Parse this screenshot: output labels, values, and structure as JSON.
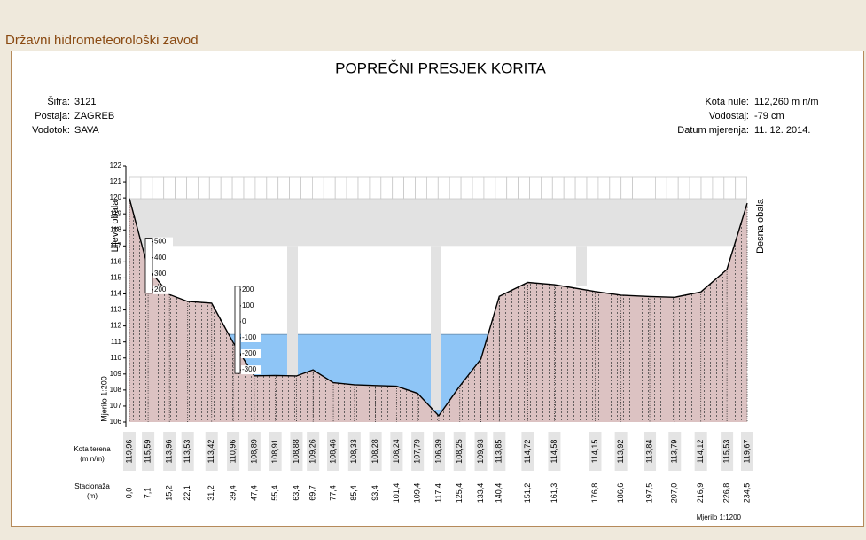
{
  "header": {
    "title": "Državni hidrometeorološki zavod"
  },
  "chart_data": {
    "type": "cross-section",
    "title": "POPREČNI PRESJEK KORITA",
    "info_left": [
      {
        "label": "Šifra:",
        "value": "3121"
      },
      {
        "label": "Postaja:",
        "value": "ZAGREB"
      },
      {
        "label": "Vodotok:",
        "value": "SAVA"
      }
    ],
    "info_right": [
      {
        "label": "Kota nule:",
        "value": 112.26,
        "value_label": "112,260 m n/m"
      },
      {
        "label": "Vodostaj:",
        "value": -79,
        "value_label": "-79 cm"
      },
      {
        "label": "Datum mjerenja:",
        "value": "11. 12. 2014."
      }
    ],
    "x": [
      0.0,
      7.1,
      15.2,
      22.1,
      31.2,
      39.4,
      47.4,
      55.4,
      63.4,
      69.7,
      77.4,
      85.4,
      93.4,
      101.4,
      109.4,
      117.4,
      125.4,
      133.4,
      140.4,
      151.2,
      161.3,
      176.8,
      186.6,
      197.5,
      207.0,
      216.9,
      226.8,
      234.5
    ],
    "x_labels": [
      "0,0",
      "7,1",
      "15,2",
      "22,1",
      "31,2",
      "39,4",
      "47,4",
      "55,4",
      "63,4",
      "69,7",
      "77,4",
      "85,4",
      "93,4",
      "101,4",
      "109,4",
      "117,4",
      "125,4",
      "133,4",
      "140,4",
      "151,2",
      "161,3",
      "176,8",
      "186,6",
      "197,5",
      "207,0",
      "216,9",
      "226,8",
      "234,5"
    ],
    "values": [
      119.96,
      115.59,
      113.96,
      113.53,
      113.42,
      110.96,
      108.89,
      108.91,
      108.88,
      109.26,
      108.46,
      108.33,
      108.28,
      108.24,
      107.79,
      106.39,
      108.25,
      109.93,
      113.85,
      114.72,
      114.58,
      114.15,
      113.92,
      113.84,
      113.79,
      114.12,
      115.53,
      119.67
    ],
    "value_labels": [
      "119,96",
      "115,59",
      "113,96",
      "113,53",
      "113,42",
      "110,96",
      "108,89",
      "108,91",
      "108,88",
      "109,26",
      "108,46",
      "108,33",
      "108,28",
      "108,24",
      "107,79",
      "106,39",
      "108,25",
      "109,93",
      "113,85",
      "114,72",
      "114,58",
      "114,15",
      "113,92",
      "113,84",
      "113,79",
      "114,12",
      "115,53",
      "119,67"
    ],
    "xlim": [
      0,
      234.5
    ],
    "ylim": [
      106,
      122
    ],
    "yticks": [
      106,
      107,
      108,
      109,
      110,
      111,
      112,
      113,
      114,
      115,
      116,
      117,
      118,
      119,
      120,
      121,
      122
    ],
    "left_bank_label": "Lijeva obala",
    "right_bank_label": "Desna obala",
    "scale_label_vertical": "Mjerilo 1:200",
    "scale_label_horizontal": "Mjerilo 1:1200",
    "row_labels": {
      "elevation": [
        "Kota terena",
        "(m n/m)"
      ],
      "station": [
        "Stacionaža",
        "(m)"
      ]
    },
    "gauges": [
      [
        500,
        400,
        300,
        200
      ],
      [
        200,
        100,
        0,
        -100,
        -200,
        -300
      ]
    ],
    "colors": {
      "terrain": "#dcc2c2",
      "water": "#8ec5f6",
      "bridge": "#e2e2e2"
    }
  }
}
